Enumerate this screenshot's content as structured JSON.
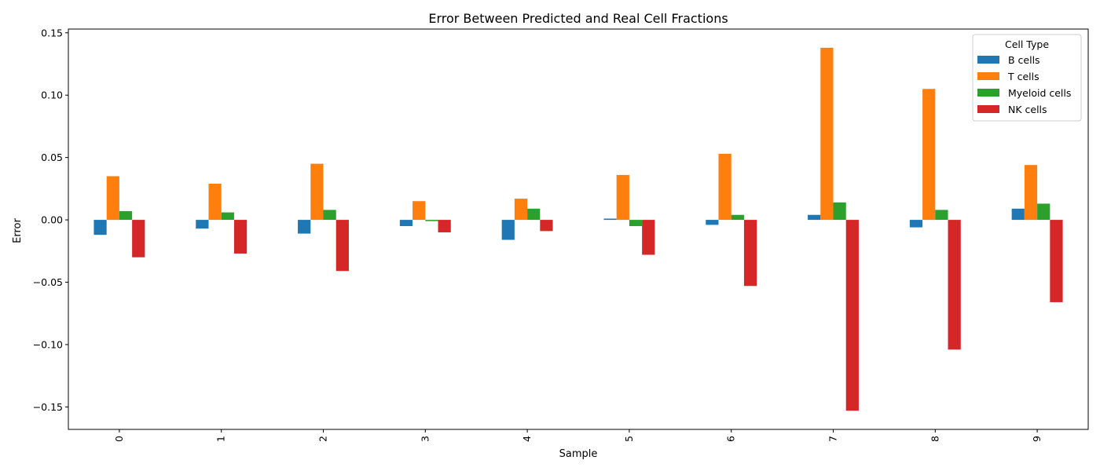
{
  "chart_data": {
    "type": "bar",
    "title": "Error Between Predicted and Real Cell Fractions",
    "xlabel": "Sample",
    "ylabel": "Error",
    "categories": [
      "0",
      "1",
      "2",
      "3",
      "4",
      "5",
      "6",
      "7",
      "8",
      "9"
    ],
    "ylim": [
      -0.168,
      0.153
    ],
    "yticks": [
      -0.15,
      -0.1,
      -0.05,
      0.0,
      0.05,
      0.1,
      0.15
    ],
    "ytick_labels": [
      "−0.15",
      "−0.10",
      "−0.05",
      "0.00",
      "0.05",
      "0.10",
      "0.15"
    ],
    "grid": false,
    "legend": {
      "title": "Cell Type",
      "placement": "top-right"
    },
    "series": [
      {
        "name": "B cells",
        "color": "#1f77b4",
        "values": [
          -0.012,
          -0.007,
          -0.011,
          -0.005,
          -0.016,
          0.001,
          -0.004,
          0.004,
          -0.006,
          0.009
        ]
      },
      {
        "name": "T cells",
        "color": "#ff7f0e",
        "values": [
          0.035,
          0.029,
          0.045,
          0.015,
          0.017,
          0.036,
          0.053,
          0.138,
          0.105,
          0.044
        ]
      },
      {
        "name": "Myeloid cells",
        "color": "#2ca02c",
        "values": [
          0.007,
          0.006,
          0.008,
          -0.001,
          0.009,
          -0.005,
          0.004,
          0.014,
          0.008,
          0.013
        ]
      },
      {
        "name": "NK cells",
        "color": "#d62728",
        "values": [
          -0.03,
          -0.027,
          -0.041,
          -0.01,
          -0.009,
          -0.028,
          -0.053,
          -0.153,
          -0.104,
          -0.066
        ]
      }
    ]
  }
}
